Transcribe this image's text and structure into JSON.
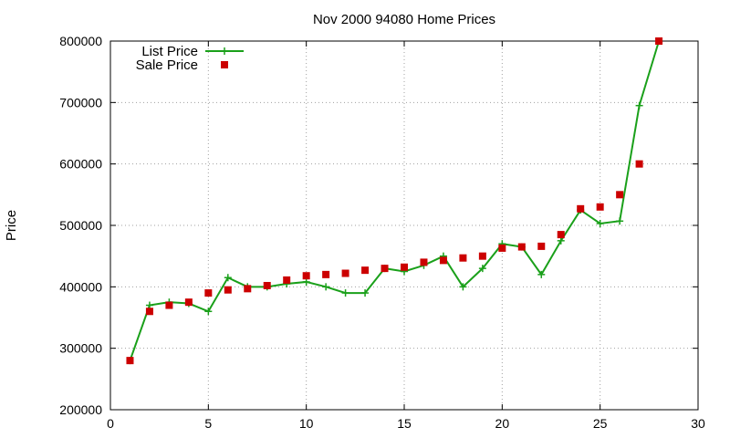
{
  "chart_data": {
    "type": "scatter",
    "title": "Nov 2000 94080 Home Prices",
    "xlabel": "",
    "ylabel": "Price",
    "xlim": [
      0,
      30
    ],
    "ylim": [
      200000,
      800000
    ],
    "xticks": [
      0,
      5,
      10,
      15,
      20,
      25,
      30
    ],
    "yticks": [
      200000,
      300000,
      400000,
      500000,
      600000,
      700000,
      800000
    ],
    "grid": true,
    "legend_position": "top-left",
    "series": [
      {
        "name": "List Price",
        "style": "linespoints",
        "color": "#1aa01a",
        "x": [
          1,
          2,
          3,
          4,
          5,
          6,
          7,
          8,
          9,
          10,
          11,
          12,
          13,
          14,
          15,
          16,
          17,
          18,
          19,
          20,
          21,
          22,
          23,
          24,
          25,
          26,
          27,
          28
        ],
        "y": [
          280000,
          370000,
          375000,
          373000,
          360000,
          415000,
          400000,
          400000,
          405000,
          408000,
          400000,
          390000,
          390000,
          430000,
          425000,
          435000,
          450000,
          400000,
          430000,
          470000,
          465000,
          420000,
          475000,
          525000,
          503000,
          507000,
          695000,
          800000
        ]
      },
      {
        "name": "Sale Price",
        "style": "points",
        "color": "#cc0000",
        "x": [
          1,
          2,
          3,
          4,
          5,
          6,
          7,
          8,
          9,
          10,
          11,
          12,
          13,
          14,
          15,
          16,
          17,
          18,
          19,
          20,
          21,
          22,
          23,
          24,
          25,
          26,
          27,
          28
        ],
        "y": [
          280000,
          360000,
          370000,
          375000,
          390000,
          395000,
          397000,
          402000,
          411000,
          418000,
          420000,
          422000,
          427000,
          430000,
          432000,
          440000,
          443000,
          447000,
          450000,
          463000,
          465000,
          466000,
          485000,
          527000,
          530000,
          550000,
          600000,
          800000
        ]
      }
    ]
  }
}
